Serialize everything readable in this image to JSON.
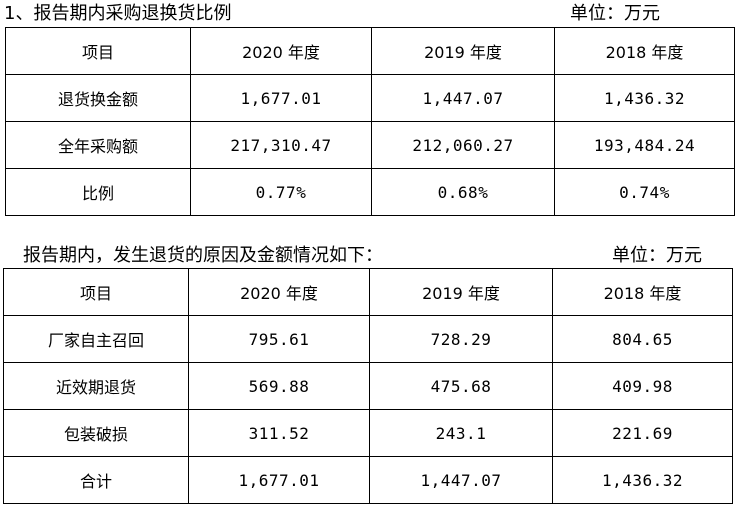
{
  "section1": {
    "title": "1、报告期内采购退换货比例",
    "unit": "单位：万元",
    "headers": [
      "项目",
      "2020 年度",
      "2019 年度",
      "2018 年度"
    ],
    "rows": [
      [
        "退货换金额",
        "1,677.01",
        "1,447.07",
        "1,436.32"
      ],
      [
        "全年采购额",
        "217,310.47",
        "212,060.27",
        "193,484.24"
      ],
      [
        "比例",
        "0.77%",
        "0.68%",
        "0.74%"
      ]
    ]
  },
  "section2": {
    "title": "报告期内，发生退货的原因及金额情况如下：",
    "unit": "单位：万元",
    "headers": [
      "项目",
      "2020 年度",
      "2019 年度",
      "2018 年度"
    ],
    "rows": [
      [
        "厂家自主召回",
        "795.61",
        "728.29",
        "804.65"
      ],
      [
        "近效期退货",
        "569.88",
        "475.68",
        "409.98"
      ],
      [
        "包装破损",
        "311.52",
        "243.1",
        "221.69"
      ],
      [
        "合计",
        "1,677.01",
        "1,447.07",
        "1,436.32"
      ]
    ]
  }
}
